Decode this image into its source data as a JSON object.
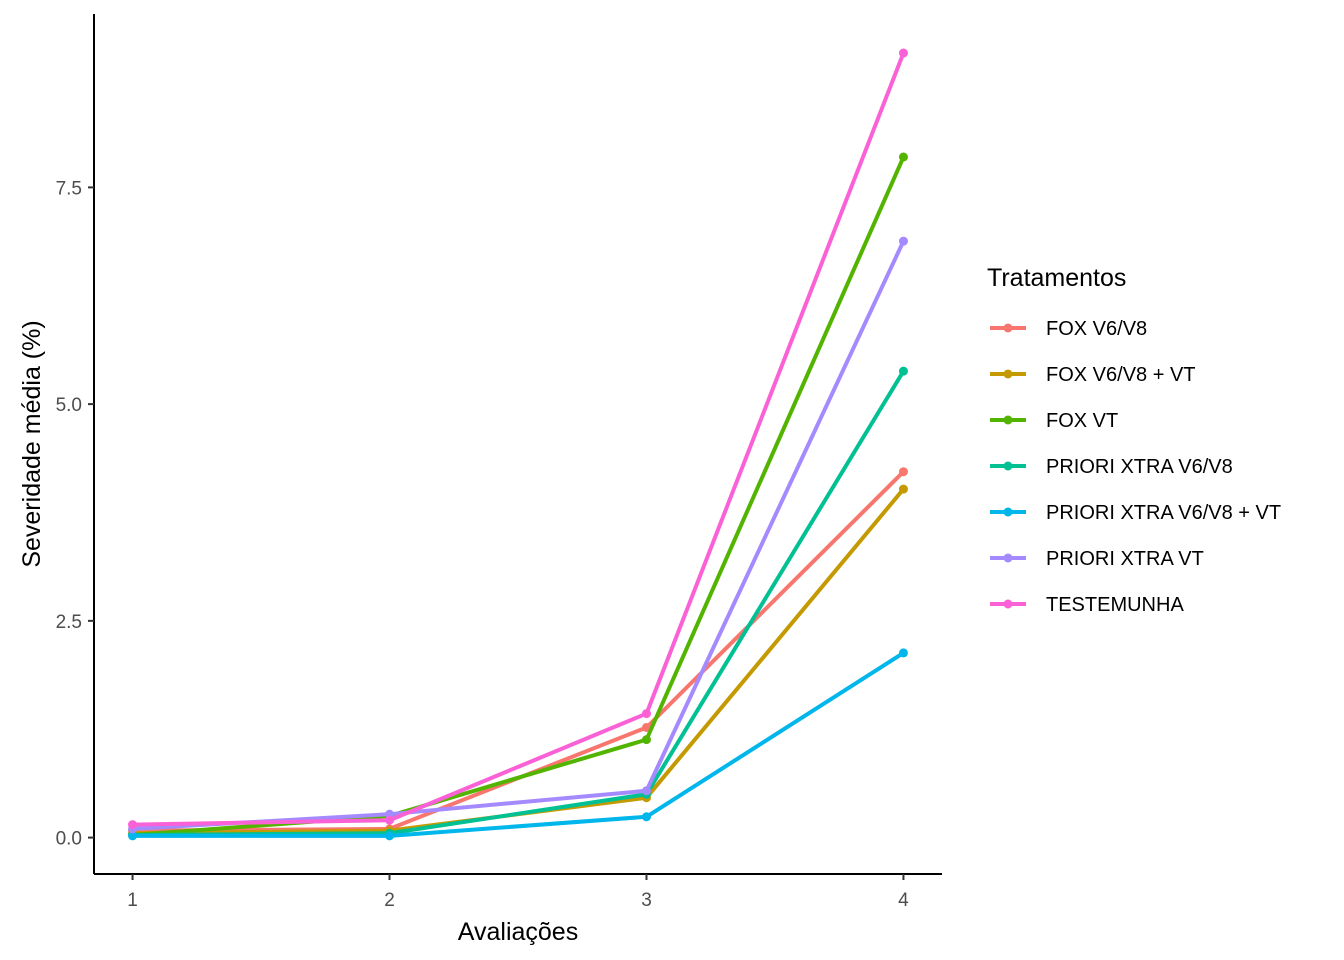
{
  "chart_data": {
    "type": "line",
    "title": "",
    "xlabel": "Avaliações",
    "ylabel": "Severidade média (%)",
    "x": [
      1,
      2,
      3,
      4
    ],
    "x_ticks": [
      "1",
      "2",
      "3",
      "4"
    ],
    "y_ticks": [
      "0.0",
      "2.5",
      "5.0",
      "7.5"
    ],
    "xlim": [
      0.85,
      4.15
    ],
    "ylim": [
      -0.42,
      9.5
    ],
    "legend": {
      "title": "Tratamentos",
      "placement": "right"
    },
    "series": [
      {
        "name": "FOX V6/V8",
        "color": "#F8766D",
        "values": [
          0.08,
          0.1,
          1.27,
          4.22
        ]
      },
      {
        "name": "FOX V6/V8 + VT",
        "color": "#C49A00",
        "values": [
          0.05,
          0.08,
          0.46,
          4.02
        ]
      },
      {
        "name": "FOX VT",
        "color": "#53B400",
        "values": [
          0.03,
          0.25,
          1.13,
          7.85
        ]
      },
      {
        "name": "PRIORI XTRA V6/V8",
        "color": "#00C094",
        "values": [
          0.03,
          0.05,
          0.5,
          5.38
        ]
      },
      {
        "name": "PRIORI XTRA V6/V8 + VT",
        "color": "#00B6EB",
        "values": [
          0.02,
          0.02,
          0.24,
          2.13
        ]
      },
      {
        "name": "PRIORI XTRA VT",
        "color": "#A58AFF",
        "values": [
          0.1,
          0.27,
          0.54,
          6.88
        ]
      },
      {
        "name": "TESTEMUNHA",
        "color": "#FB61D7",
        "values": [
          0.15,
          0.2,
          1.43,
          9.05
        ]
      }
    ]
  }
}
